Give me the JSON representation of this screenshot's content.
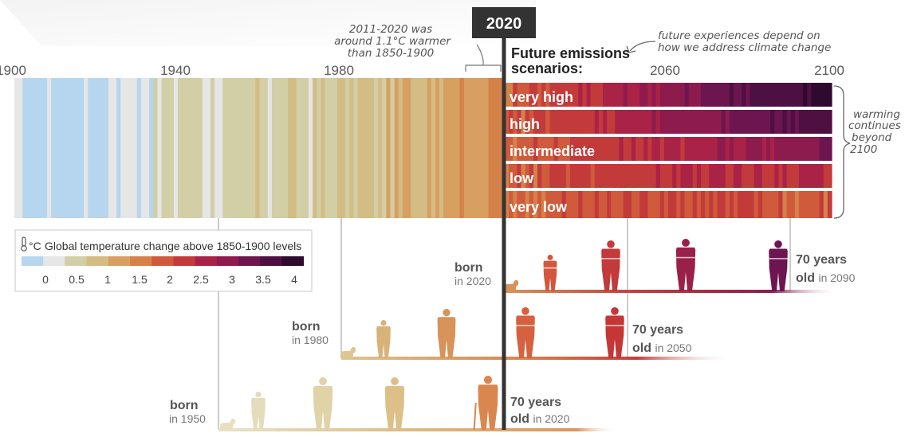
{
  "chart_data": {
    "type": "heatmap",
    "x_axis": {
      "range": [
        1900,
        2100
      ],
      "tick_labels": [
        "1900",
        "1940",
        "1980",
        "2060",
        "2100"
      ]
    },
    "highlight_year": {
      "label": "2020",
      "value": 2020
    },
    "historical_annotation": {
      "lines": [
        "2011-2020 was",
        "around 1.1°C warmer",
        "than 1850-1900"
      ]
    },
    "scenarios_heading": {
      "lines": [
        "Future emissions",
        "scenarios:"
      ]
    },
    "future_annotation": {
      "lines": [
        "future experiences depend on",
        "how we address climate change"
      ]
    },
    "continues_annotation": {
      "lines": [
        "warming",
        "continues",
        "beyond",
        "2100"
      ]
    },
    "scenarios": [
      {
        "name": "very high",
        "end_temp": 4.3
      },
      {
        "name": "high",
        "end_temp": 3.9
      },
      {
        "name": "intermediate",
        "end_temp": 3.0
      },
      {
        "name": "low",
        "end_temp": 1.9
      },
      {
        "name": "very low",
        "end_temp": 1.5
      }
    ],
    "legend": {
      "unit": "°C",
      "title": "Global temperature change above 1850-1900 levels",
      "tick_labels": [
        "0",
        "0.5",
        "1",
        "1.5",
        "2",
        "2.5",
        "3",
        "3.5",
        "4"
      ],
      "tick_values": [
        0,
        0.5,
        1,
        1.5,
        2,
        2.5,
        3,
        3.5,
        4
      ],
      "placement": "bottom-left"
    },
    "generations": [
      {
        "born_label": "born",
        "born_year_label": "in 1950",
        "birth_year": 1950,
        "age_label": "70 years",
        "age_old": "old",
        "age_year_label": "in 2020",
        "age_year": 2020
      },
      {
        "born_label": "born",
        "born_year_label": "in 1980",
        "birth_year": 1980,
        "age_label": "70 years",
        "age_old": "old",
        "age_year_label": "in 2050",
        "age_year": 2050
      },
      {
        "born_label": "born",
        "born_year_label": "in 2020",
        "birth_year": 2020,
        "age_label": "70 years",
        "age_old": "old",
        "age_year_label": "in 2090",
        "age_year": 2090
      }
    ]
  },
  "colors": {
    "scale": [
      "#b6d6ef",
      "#e6e6e6",
      "#d2cea6",
      "#d4bc85",
      "#d7a060",
      "#d5814a",
      "#d05a3c",
      "#c33a3b",
      "#aa2246",
      "#8e1b4d",
      "#6d154f",
      "#4d1040",
      "#2e0a2f"
    ],
    "highlight": "#333333",
    "label_gray": "#555555"
  }
}
